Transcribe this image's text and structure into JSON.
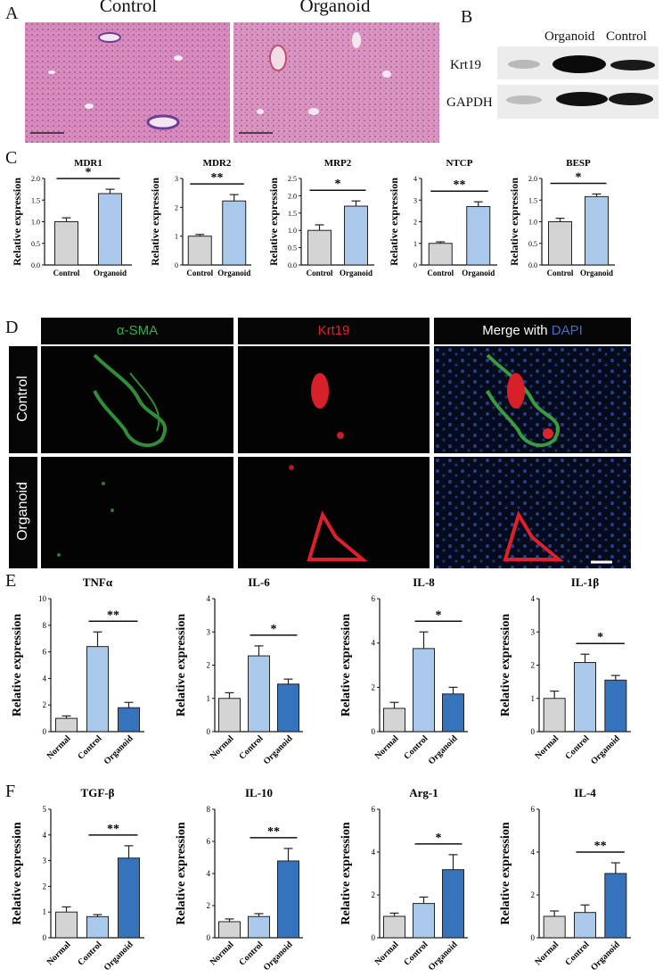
{
  "panel_letters": {
    "a": "A",
    "b": "B",
    "c": "C",
    "d": "D",
    "e": "E",
    "f": "F"
  },
  "histology": {
    "control_title": "Control",
    "organoid_title": "Organoid"
  },
  "western_blot": {
    "col_organoid": "Organoid",
    "col_control": "Control",
    "row_krt19": "Krt19",
    "row_gapdh": "GAPDH"
  },
  "immunofluorescence": {
    "col_sma": "α-SMA",
    "col_krt19": "Krt19",
    "col_merge_prefix": "Merge with ",
    "col_merge_dapi": "DAPI",
    "row_control": "Control",
    "row_organoid": "Organoid",
    "colors": {
      "sma": "#2fb34a",
      "krt19": "#e8202a",
      "dapi": "#3c6fd6"
    }
  },
  "colors": {
    "gray": "#d4d4d4",
    "light_blue": "#a9c8ea",
    "dark_blue": "#3573bd"
  },
  "chart_data": [
    {
      "panel": "C",
      "type": "bar",
      "title": "MDR1",
      "ylabel": "Relative expression",
      "categories": [
        "Control",
        "Organoid"
      ],
      "values": [
        1.0,
        1.65
      ],
      "errors": [
        0.09,
        0.1
      ],
      "ylim": [
        0,
        2.0
      ],
      "yticks": [
        "0.0",
        "0.5",
        "1.0",
        "1.5",
        "2.0"
      ],
      "significance": "*",
      "sig_pair": [
        0,
        1
      ]
    },
    {
      "panel": "C",
      "type": "bar",
      "title": "MDR2",
      "ylabel": "Relative expression",
      "categories": [
        "Control",
        "Organoid"
      ],
      "values": [
        1.0,
        2.22
      ],
      "errors": [
        0.06,
        0.22
      ],
      "ylim": [
        0,
        3
      ],
      "yticks": [
        "0",
        "1",
        "2",
        "3"
      ],
      "significance": "**",
      "sig_pair": [
        0,
        1
      ]
    },
    {
      "panel": "C",
      "type": "bar",
      "title": "MRP2",
      "ylabel": "Relative expression",
      "categories": [
        "Control",
        "Organoid"
      ],
      "values": [
        1.0,
        1.7
      ],
      "errors": [
        0.16,
        0.15
      ],
      "ylim": [
        0,
        2.5
      ],
      "yticks": [
        "0.0",
        "0.5",
        "1.0",
        "1.5",
        "2.0",
        "2.5"
      ],
      "significance": "*",
      "sig_pair": [
        0,
        1
      ]
    },
    {
      "panel": "C",
      "type": "bar",
      "title": "NTCP",
      "ylabel": "Relative expression",
      "categories": [
        "Control",
        "Organoid"
      ],
      "values": [
        1.0,
        2.7
      ],
      "errors": [
        0.07,
        0.22
      ],
      "ylim": [
        0,
        4
      ],
      "yticks": [
        "0",
        "1",
        "2",
        "3",
        "4"
      ],
      "significance": "**",
      "sig_pair": [
        0,
        1
      ]
    },
    {
      "panel": "C",
      "type": "bar",
      "title": "BESP",
      "ylabel": "Relative expression",
      "categories": [
        "Control",
        "Organoid"
      ],
      "values": [
        1.0,
        1.58
      ],
      "errors": [
        0.08,
        0.06
      ],
      "ylim": [
        0,
        2.0
      ],
      "yticks": [
        "0.0",
        "0.5",
        "1.0",
        "1.5",
        "2.0"
      ],
      "significance": "*",
      "sig_pair": [
        0,
        1
      ]
    },
    {
      "panel": "E",
      "type": "bar",
      "title": "TNFα",
      "ylabel": "Relative expression",
      "categories": [
        "Normal",
        "Control",
        "Organoid"
      ],
      "values": [
        1.0,
        6.4,
        1.8
      ],
      "errors": [
        0.18,
        1.1,
        0.4
      ],
      "ylim": [
        0,
        10
      ],
      "yticks": [
        "0",
        "2",
        "4",
        "6",
        "8",
        "10"
      ],
      "significance": "**",
      "sig_pair": [
        1,
        2
      ]
    },
    {
      "panel": "E",
      "type": "bar",
      "title": "IL-6",
      "ylabel": "Relative expression",
      "categories": [
        "Normal",
        "Control",
        "Organoid"
      ],
      "values": [
        1.0,
        2.28,
        1.43
      ],
      "errors": [
        0.17,
        0.3,
        0.15
      ],
      "ylim": [
        0,
        4
      ],
      "yticks": [
        "0",
        "1",
        "2",
        "3",
        "4"
      ],
      "significance": "*",
      "sig_pair": [
        1,
        2
      ]
    },
    {
      "panel": "E",
      "type": "bar",
      "title": "IL-8",
      "ylabel": "Relative expression",
      "categories": [
        "Normal",
        "Control",
        "Organoid"
      ],
      "values": [
        1.05,
        3.75,
        1.7
      ],
      "errors": [
        0.27,
        0.75,
        0.3
      ],
      "ylim": [
        0,
        6
      ],
      "yticks": [
        "0",
        "2",
        "4",
        "6"
      ],
      "significance": "*",
      "sig_pair": [
        1,
        2
      ]
    },
    {
      "panel": "E",
      "type": "bar",
      "title": "IL-1β",
      "ylabel": "Relative expression",
      "categories": [
        "Normal",
        "Control",
        "Organoid"
      ],
      "values": [
        1.0,
        2.08,
        1.55
      ],
      "errors": [
        0.22,
        0.25,
        0.14
      ],
      "ylim": [
        0,
        4
      ],
      "yticks": [
        "0",
        "1",
        "2",
        "3",
        "4"
      ],
      "significance": "*",
      "sig_pair": [
        1,
        2
      ]
    },
    {
      "panel": "F",
      "type": "bar",
      "title": "TGF-β",
      "ylabel": "Relative expression",
      "categories": [
        "Normal",
        "Control",
        "Organoid"
      ],
      "values": [
        1.0,
        0.82,
        3.1
      ],
      "errors": [
        0.2,
        0.08,
        0.48
      ],
      "ylim": [
        0,
        5
      ],
      "yticks": [
        "0",
        "1",
        "2",
        "3",
        "4",
        "5"
      ],
      "significance": "**",
      "sig_pair": [
        1,
        2
      ]
    },
    {
      "panel": "F",
      "type": "bar",
      "title": "IL-10",
      "ylabel": "Relative expression",
      "categories": [
        "Normal",
        "Control",
        "Organoid"
      ],
      "values": [
        1.0,
        1.32,
        4.78
      ],
      "errors": [
        0.17,
        0.18,
        0.78
      ],
      "ylim": [
        0,
        8
      ],
      "yticks": [
        "0",
        "2",
        "4",
        "6",
        "8"
      ],
      "significance": "**",
      "sig_pair": [
        1,
        2
      ]
    },
    {
      "panel": "F",
      "type": "bar",
      "title": "Arg-1",
      "ylabel": "Relative expression",
      "categories": [
        "Normal",
        "Control",
        "Organoid"
      ],
      "values": [
        1.0,
        1.6,
        3.18
      ],
      "errors": [
        0.15,
        0.3,
        0.7
      ],
      "ylim": [
        0,
        6
      ],
      "yticks": [
        "0",
        "2",
        "4",
        "6"
      ],
      "significance": "*",
      "sig_pair": [
        1,
        2
      ]
    },
    {
      "panel": "F",
      "type": "bar",
      "title": "IL-4",
      "ylabel": "Relative expression",
      "categories": [
        "Normal",
        "Control",
        "Organoid"
      ],
      "values": [
        1.0,
        1.18,
        3.0
      ],
      "errors": [
        0.25,
        0.35,
        0.5
      ],
      "ylim": [
        0,
        6
      ],
      "yticks": [
        "0",
        "2",
        "4",
        "6"
      ],
      "significance": "**",
      "sig_pair": [
        1,
        2
      ]
    }
  ]
}
